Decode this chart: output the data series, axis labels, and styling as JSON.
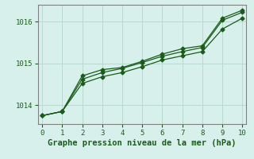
{
  "x": [
    0,
    1,
    2,
    3,
    4,
    5,
    6,
    7,
    8,
    9,
    10
  ],
  "line1": [
    1013.75,
    1013.85,
    1014.62,
    1014.78,
    1014.88,
    1015.02,
    1015.17,
    1015.28,
    1015.38,
    1016.03,
    1016.22
  ],
  "line2": [
    1013.75,
    1013.85,
    1014.7,
    1014.85,
    1014.9,
    1015.05,
    1015.22,
    1015.35,
    1015.42,
    1016.08,
    1016.27
  ],
  "line3": [
    1013.75,
    1013.85,
    1014.52,
    1014.68,
    1014.78,
    1014.92,
    1015.08,
    1015.18,
    1015.28,
    1015.82,
    1016.08
  ],
  "xlim": [
    -0.2,
    10.2
  ],
  "ylim": [
    1013.55,
    1016.4
  ],
  "yticks": [
    1014,
    1015,
    1016
  ],
  "xticks": [
    0,
    1,
    2,
    3,
    4,
    5,
    6,
    7,
    8,
    9,
    10
  ],
  "xlabel": "Graphe pression niveau de la mer (hPa)",
  "line_color": "#1a5c1a",
  "marker": "D",
  "marker_size": 2.5,
  "bg_color": "#d8f0ec",
  "grid_color": "#b8d8d0",
  "title_color": "#1a5c1a",
  "xlabel_fontsize": 7.5
}
